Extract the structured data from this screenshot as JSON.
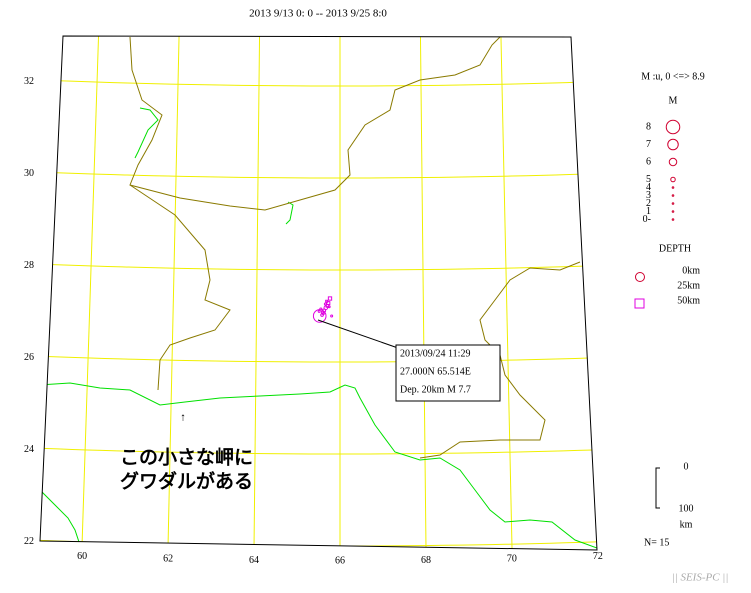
{
  "title": "2013 9/13 0: 0 -- 2013 9/25 8:0",
  "map": {
    "lat_ticks": [
      22,
      24,
      26,
      28,
      30,
      32
    ],
    "lon_ticks": [
      60,
      62,
      64,
      66,
      68,
      70,
      72
    ],
    "grid_color": "#f0f000",
    "events": [
      {
        "lon": 65.514,
        "lat": 27.0,
        "mag": 7.7,
        "depth": 20
      },
      {
        "lon": 65.76,
        "lat": 27.38,
        "mag": 4.6,
        "depth": 50
      },
      {
        "lon": 65.72,
        "lat": 27.28,
        "mag": 4.5,
        "depth": 50
      },
      {
        "lon": 65.7,
        "lat": 27.22,
        "mag": 4.4,
        "depth": 50
      },
      {
        "lon": 65.66,
        "lat": 27.18,
        "mag": 4.7,
        "depth": 25
      },
      {
        "lon": 65.62,
        "lat": 27.12,
        "mag": 4.5,
        "depth": 25
      },
      {
        "lon": 65.58,
        "lat": 27.08,
        "mag": 4.3,
        "depth": 25
      },
      {
        "lon": 65.54,
        "lat": 27.15,
        "mag": 4.2,
        "depth": 25
      },
      {
        "lon": 65.6,
        "lat": 27.05,
        "mag": 4.0,
        "depth": 25
      },
      {
        "lon": 65.8,
        "lat": 27.0,
        "mag": 3.8,
        "depth": 25
      },
      {
        "lon": 65.68,
        "lat": 27.32,
        "mag": 4.1,
        "depth": 50
      },
      {
        "lon": 65.74,
        "lat": 27.2,
        "mag": 4.0,
        "depth": 25
      },
      {
        "lon": 65.5,
        "lat": 27.1,
        "mag": 3.9,
        "depth": 25
      },
      {
        "lon": 65.65,
        "lat": 27.26,
        "mag": 4.2,
        "depth": 25
      },
      {
        "lon": 65.57,
        "lat": 27.02,
        "mag": 4.4,
        "depth": 25
      }
    ]
  },
  "callout": {
    "lines": [
      "2013/09/24 11:29",
      "27.000N  65.514E",
      "Dep. 20km   M 7.7"
    ]
  },
  "annotation": {
    "arrow": "↑",
    "lines": [
      "この小さな岬に",
      "グワダルがある"
    ]
  },
  "legend": {
    "range": "M :u, 0 <=> 8.9",
    "m_title": "M",
    "magnitudes": [
      8,
      7,
      6,
      5,
      4,
      3,
      2,
      1,
      {
        "value": 0,
        "label": "0-"
      }
    ],
    "mag_color": "#d00030",
    "depth_title": "DEPTH",
    "depths": [
      {
        "label": "0km",
        "shape": "circle",
        "color": "#d00030"
      },
      {
        "label": "25km"
      },
      {
        "label": "50km",
        "shape": "square",
        "color": "#e000e0"
      }
    ],
    "depth_scale": {
      "top": "0",
      "bottom": "100",
      "unit": "km"
    }
  },
  "count": "N= 15",
  "footer": "|| SEIS-PC ||"
}
